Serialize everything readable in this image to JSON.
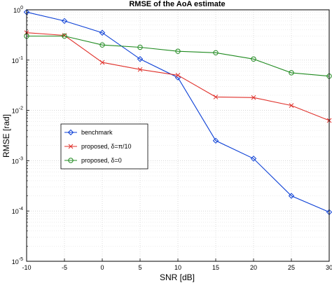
{
  "chart_data": {
    "type": "line",
    "title": "RMSE of the AoA estimate",
    "xlabel": "SNR [dB]",
    "ylabel": "RMSE [rad]",
    "yscale": "log",
    "xlim": [
      -10,
      30
    ],
    "ylim": [
      1e-05,
      1
    ],
    "x_ticks": [
      "-10",
      "-5",
      "0",
      "5",
      "10",
      "15",
      "20",
      "25",
      "30"
    ],
    "y_ticks": [
      {
        "base": "10",
        "exp": "-5",
        "value": 1e-05
      },
      {
        "base": "10",
        "exp": "-4",
        "value": 0.0001
      },
      {
        "base": "10",
        "exp": "-3",
        "value": 0.001
      },
      {
        "base": "10",
        "exp": "-2",
        "value": 0.01
      },
      {
        "base": "10",
        "exp": "-1",
        "value": 0.1
      },
      {
        "base": "10",
        "exp": "0",
        "value": 1
      }
    ],
    "grid": true,
    "legend_position": "center-left",
    "x": [
      -10,
      -5,
      0,
      5,
      10,
      15,
      20,
      25,
      30
    ],
    "series": [
      {
        "name": "benchmark",
        "color": "#0b3fd6",
        "marker": "diamond",
        "values": [
          0.9,
          0.6,
          0.35,
          0.105,
          0.045,
          0.0025,
          0.0011,
          0.0002,
          9.5e-05
        ]
      },
      {
        "name": "proposed, δ=π/10",
        "color": "#e0312b",
        "marker": "x",
        "values": [
          0.35,
          0.31,
          0.09,
          0.065,
          0.05,
          0.0185,
          0.018,
          0.0125,
          0.0063
        ]
      },
      {
        "name": "proposed, δ=0",
        "color": "#1f8a1f",
        "marker": "circle",
        "values": [
          0.3,
          0.3,
          0.2,
          0.18,
          0.15,
          0.14,
          0.105,
          0.056,
          0.048
        ]
      }
    ]
  }
}
